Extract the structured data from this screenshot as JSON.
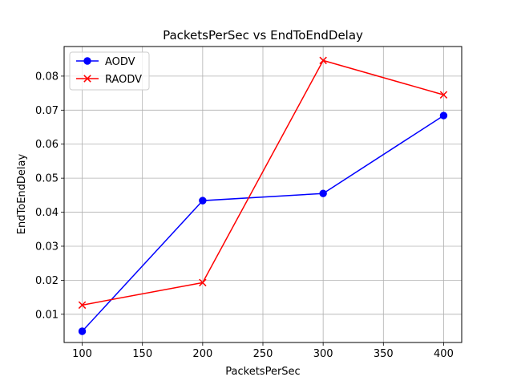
{
  "chart_data": {
    "type": "line",
    "title": "PacketsPerSec vs EndToEndDelay",
    "xlabel": "PacketsPerSec",
    "ylabel": "EndToEndDelay",
    "x": [
      100,
      200,
      300,
      400
    ],
    "xlim": [
      85,
      415
    ],
    "ylim": [
      0.0017,
      0.0887
    ],
    "xticks": [
      100,
      150,
      200,
      250,
      300,
      350,
      400
    ],
    "yticks": [
      0.01,
      0.02,
      0.03,
      0.04,
      0.05,
      0.06,
      0.07,
      0.08
    ],
    "xtick_labels": [
      "100",
      "150",
      "200",
      "250",
      "300",
      "350",
      "400"
    ],
    "ytick_labels": [
      "0.01",
      "0.02",
      "0.03",
      "0.04",
      "0.05",
      "0.06",
      "0.07",
      "0.08"
    ],
    "grid": true,
    "legend_position": "top-left",
    "series": [
      {
        "name": "AODV",
        "color": "#0000ff",
        "marker": "circle",
        "values": [
          0.005,
          0.0434,
          0.0455,
          0.0684
        ]
      },
      {
        "name": "RAODV",
        "color": "#ff0000",
        "marker": "x",
        "values": [
          0.0127,
          0.0193,
          0.0846,
          0.0745
        ]
      }
    ]
  }
}
